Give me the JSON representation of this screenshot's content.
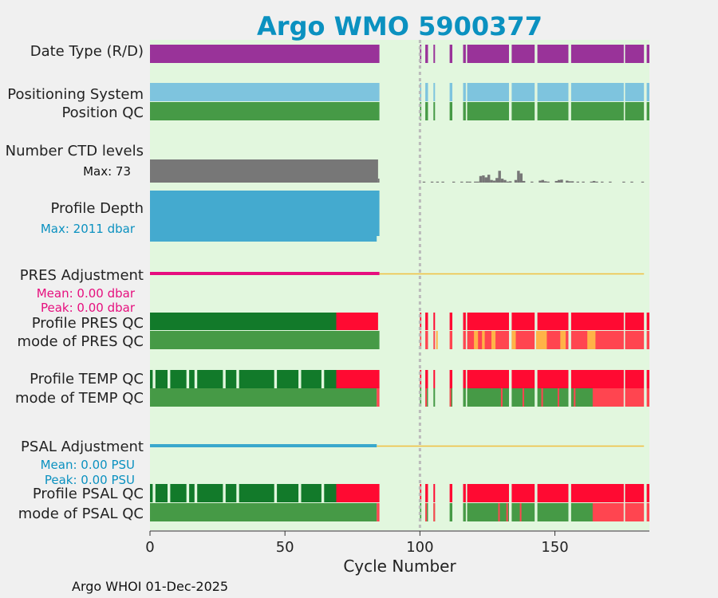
{
  "chart_data": {
    "type": "bar",
    "title": "Argo WMO 5900377",
    "xlabel": "Cycle Number",
    "xlim": [
      0,
      185
    ],
    "xticks": [
      0,
      50,
      100,
      150
    ],
    "footer": "Argo WHOI 01-Dec-2025",
    "marker_cycle": 100,
    "rows": {
      "date_type": "Date Type (R/D)",
      "positioning": "Positioning System",
      "position_qc": "Position QC",
      "ctd_levels": "Number CTD levels",
      "ctd_max": "Max: 73",
      "profile_depth": "Profile Depth",
      "depth_max": "Max: 2011 dbar",
      "pres_adj": "PRES Adjustment",
      "pres_mean": "Mean: 0.00 dbar",
      "pres_peak": "Peak: 0.00 dbar",
      "profile_pres_qc": "Profile PRES QC",
      "mode_pres_qc": "mode of PRES QC",
      "profile_temp_qc": "Profile TEMP QC",
      "mode_temp_qc": "mode of TEMP QC",
      "psal_adj": "PSAL Adjustment",
      "psal_mean": "Mean: 0.00 PSU",
      "psal_peak": "Peak: 0.00 PSU",
      "profile_psal_qc": "Profile PSAL QC",
      "mode_psal_qc": "mode of PSAL QC"
    },
    "colors": {
      "background": "#e2f7de",
      "purple": "#993399",
      "lightblue": "#7ec4de",
      "green": "#469a46",
      "darkgreen": "#127a2a",
      "red": "#ff0a32",
      "lightred": "#ff4550",
      "orange": "#ffb347",
      "gray": "#777777",
      "depthblue": "#44aacf",
      "magenta": "#e60f7e",
      "psalblue": "#3aa8cc",
      "adjline": "#f0c040",
      "title": "#0b91c0"
    },
    "segments_present": [
      [
        0,
        85
      ],
      [
        100,
        100.5
      ],
      [
        102,
        103
      ],
      [
        105,
        105.6
      ],
      [
        111,
        112
      ],
      [
        116,
        117
      ],
      [
        117.5,
        133
      ],
      [
        134,
        142.5
      ],
      [
        143.5,
        155
      ],
      [
        156,
        175.5
      ],
      [
        176,
        183
      ],
      [
        184,
        185
      ]
    ],
    "ctd_early_max": 73,
    "ctd_late_bars": [
      [
        101,
        1
      ],
      [
        104,
        1
      ],
      [
        106,
        1
      ],
      [
        108,
        1
      ],
      [
        112,
        1
      ],
      [
        115,
        1
      ],
      [
        117,
        3
      ],
      [
        118,
        2
      ],
      [
        120,
        3
      ],
      [
        121,
        3
      ],
      [
        122,
        20
      ],
      [
        123,
        22
      ],
      [
        124,
        16
      ],
      [
        125,
        24
      ],
      [
        126,
        8
      ],
      [
        127,
        6
      ],
      [
        128,
        14
      ],
      [
        129,
        36
      ],
      [
        130,
        12
      ],
      [
        131,
        8
      ],
      [
        132,
        3
      ],
      [
        133,
        4
      ],
      [
        135,
        8
      ],
      [
        136,
        36
      ],
      [
        137,
        28
      ],
      [
        138,
        5
      ],
      [
        141,
        3
      ],
      [
        144,
        6
      ],
      [
        145,
        8
      ],
      [
        146,
        4
      ],
      [
        147,
        3
      ],
      [
        150,
        5
      ],
      [
        151,
        8
      ],
      [
        152,
        9
      ],
      [
        154,
        6
      ],
      [
        155,
        4
      ],
      [
        156,
        4
      ],
      [
        158,
        3
      ],
      [
        160,
        3
      ],
      [
        163,
        2
      ],
      [
        164,
        5
      ],
      [
        165,
        3
      ],
      [
        167,
        2
      ],
      [
        170,
        1
      ],
      [
        175,
        1
      ],
      [
        178,
        1
      ],
      [
        182,
        1
      ]
    ],
    "temp_qc_gaps": [
      1,
      6.5,
      13.5,
      16.5,
      27,
      32,
      46,
      55,
      63.5
    ],
    "pres_mode_orange": [
      [
        106,
        106.6
      ],
      [
        120,
        121.5
      ],
      [
        123,
        124
      ],
      [
        126.5,
        128
      ],
      [
        134,
        135.5
      ],
      [
        143,
        147
      ],
      [
        152,
        154
      ],
      [
        162,
        165
      ]
    ],
    "pres_adj_early_len": 85,
    "psal_adj_early_len": 84
  }
}
